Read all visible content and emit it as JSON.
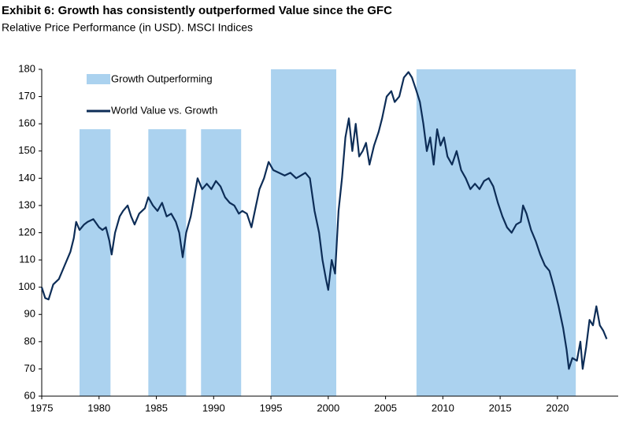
{
  "chart_data": {
    "type": "line",
    "title": "Exhibit 6: Growth has consistently outperformed Value since the GFC",
    "subtitle": "Relative Price Performance (in USD). MSCI Indices",
    "xlim": [
      1975,
      2025.3
    ],
    "ylim": [
      60,
      180
    ],
    "xticks": [
      1975,
      1980,
      1985,
      1990,
      1995,
      2000,
      2005,
      2010,
      2015,
      2020
    ],
    "yticks": [
      60,
      70,
      80,
      90,
      100,
      110,
      120,
      130,
      140,
      150,
      160,
      170,
      180
    ],
    "grid": false,
    "shaded": {
      "name": "Growth Outperforming",
      "color": "#abd2ef",
      "regions": [
        {
          "start": 1978.3,
          "end": 1981.0,
          "top": 158
        },
        {
          "start": 1984.3,
          "end": 1987.6,
          "top": 158
        },
        {
          "start": 1988.9,
          "end": 1992.4,
          "top": 158
        },
        {
          "start": 1995.0,
          "end": 2000.7,
          "top": 180
        },
        {
          "start": 2007.7,
          "end": 2021.6,
          "top": 180
        }
      ]
    },
    "series": [
      {
        "name": "World Value vs. Growth",
        "color": "#0d2d57",
        "x": [
          1975.0,
          1975.3,
          1975.6,
          1976.0,
          1976.5,
          1977.0,
          1977.5,
          1977.8,
          1978.0,
          1978.3,
          1978.7,
          1979.0,
          1979.5,
          1980.0,
          1980.3,
          1980.6,
          1980.9,
          1981.1,
          1981.4,
          1981.8,
          1982.1,
          1982.5,
          1982.8,
          1983.1,
          1983.5,
          1984.0,
          1984.3,
          1984.7,
          1985.1,
          1985.5,
          1985.9,
          1986.3,
          1986.7,
          1987.0,
          1987.3,
          1987.6,
          1988.0,
          1988.3,
          1988.6,
          1989.0,
          1989.4,
          1989.8,
          1990.2,
          1990.6,
          1991.0,
          1991.4,
          1991.8,
          1992.2,
          1992.5,
          1992.9,
          1993.3,
          1993.7,
          1994.0,
          1994.4,
          1994.8,
          1995.2,
          1995.7,
          1996.2,
          1996.7,
          1997.2,
          1997.6,
          1998.0,
          1998.4,
          1998.8,
          1999.2,
          1999.5,
          1999.8,
          2000.0,
          2000.3,
          2000.6,
          2000.9,
          2001.2,
          2001.5,
          2001.8,
          2002.1,
          2002.4,
          2002.7,
          2003.0,
          2003.3,
          2003.6,
          2004.0,
          2004.4,
          2004.7,
          2005.1,
          2005.5,
          2005.8,
          2006.2,
          2006.6,
          2007.0,
          2007.3,
          2007.7,
          2008.0,
          2008.3,
          2008.6,
          2008.9,
          2009.2,
          2009.5,
          2009.8,
          2010.1,
          2010.4,
          2010.8,
          2011.2,
          2011.6,
          2012.0,
          2012.4,
          2012.8,
          2013.2,
          2013.6,
          2014.0,
          2014.4,
          2014.8,
          2015.2,
          2015.6,
          2016.0,
          2016.4,
          2016.8,
          2017.0,
          2017.3,
          2017.7,
          2018.1,
          2018.5,
          2018.9,
          2019.3,
          2019.7,
          2020.1,
          2020.5,
          2020.8,
          2021.0,
          2021.3,
          2021.7,
          2022.0,
          2022.2,
          2022.5,
          2022.8,
          2023.1,
          2023.4,
          2023.7,
          2024.0,
          2024.3
        ],
        "values": [
          100,
          96,
          95.5,
          101,
          103,
          108,
          113,
          118,
          124,
          121,
          123,
          124,
          125,
          122,
          121,
          122,
          117,
          112,
          120,
          126,
          128,
          130,
          126,
          123,
          127,
          129,
          133,
          130,
          128,
          131,
          126,
          127,
          124,
          120,
          111,
          120,
          126,
          133,
          140,
          136,
          138,
          136,
          139,
          137,
          133,
          131,
          130,
          127,
          128,
          127,
          122,
          130,
          136,
          140,
          146,
          143,
          142,
          141,
          142,
          140,
          141,
          142,
          140,
          128,
          120,
          110,
          103,
          99,
          110,
          105,
          128,
          140,
          155,
          162,
          150,
          160,
          148,
          150,
          153,
          145,
          152,
          157,
          162,
          170,
          172,
          168,
          170,
          177,
          179,
          177,
          172,
          168,
          160,
          150,
          155,
          145,
          158,
          152,
          155,
          148,
          145,
          150,
          143,
          140,
          136,
          138,
          136,
          139,
          140,
          137,
          131,
          126,
          122,
          120,
          123,
          124,
          130,
          127,
          121,
          117,
          112,
          108,
          106,
          100,
          93,
          85,
          77,
          70,
          74,
          73,
          80,
          70,
          78,
          88,
          86,
          93,
          86,
          84,
          81
        ]
      }
    ]
  }
}
